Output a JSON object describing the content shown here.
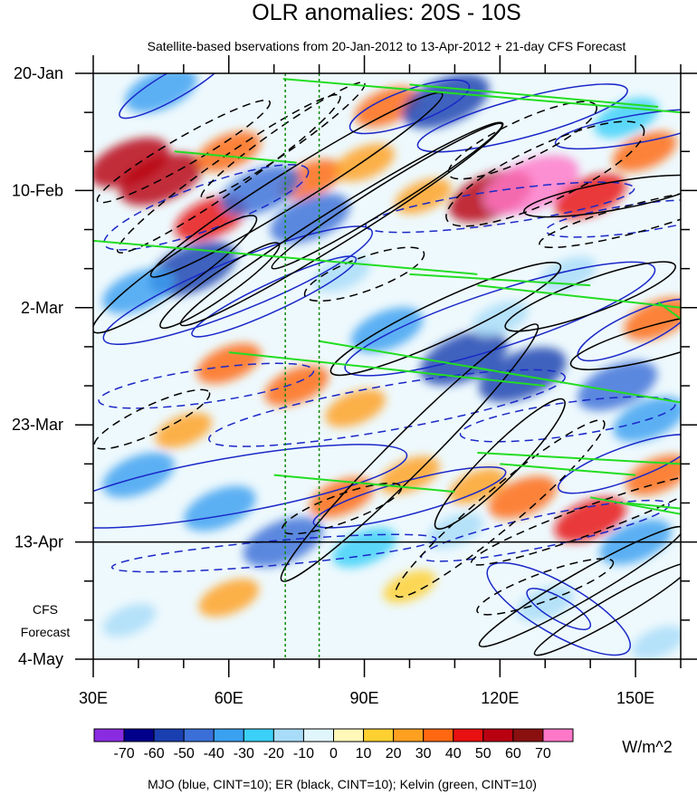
{
  "chart_data": {
    "type": "heatmap",
    "title": "OLR anomalies: 20S - 10S",
    "subtitle": "Satellite-based bservations from 20-Jan-2012 to 13-Apr-2012 + 21-day CFS Forecast",
    "xlabel": "",
    "ylabel": "",
    "xlim": [
      30,
      160
    ],
    "x_ticks": [
      {
        "value": 30,
        "label": "30E"
      },
      {
        "value": 60,
        "label": "60E"
      },
      {
        "value": 90,
        "label": "90E"
      },
      {
        "value": 120,
        "label": "120E"
      },
      {
        "value": 150,
        "label": "150E"
      }
    ],
    "time_range_days": [
      0,
      105
    ],
    "y_ticks": [
      {
        "day": 0,
        "label": "20-Jan"
      },
      {
        "day": 21,
        "label": "10-Feb"
      },
      {
        "day": 42,
        "label": "2-Mar"
      },
      {
        "day": 63,
        "label": "23-Mar"
      },
      {
        "day": 84,
        "label": "13-Apr"
      },
      {
        "day": 105,
        "label": "4-May"
      }
    ],
    "forecast_start_day": 84,
    "forecast_label_line1": "CFS",
    "forecast_label_line2": "Forecast",
    "reference_lines_lon": [
      72.5,
      80
    ],
    "colorbar": {
      "levels": [
        "-70",
        "-60",
        "-50",
        "-40",
        "-30",
        "-20",
        "-10",
        "0",
        "10",
        "20",
        "30",
        "40",
        "50",
        "60",
        "70"
      ],
      "colors": [
        "#8a2be2",
        "#00008b",
        "#1a3fb0",
        "#3a6fd8",
        "#3aa0f0",
        "#3ad0f8",
        "#a8dcf8",
        "#e0f6fc",
        "#fff8b8",
        "#ffd030",
        "#ffa020",
        "#ff6810",
        "#e81010",
        "#b80010",
        "#8a1010",
        "#ff78c8"
      ],
      "units": "W/m^2"
    },
    "contour_note": "MJO (blue, CINT=10); ER (black, CINT=10); Kelvin (green, CINT=10)",
    "series": [
      {
        "name": "MJO",
        "color": "#1a28c8"
      },
      {
        "name": "ER",
        "color": "#000000"
      },
      {
        "name": "Kelvin",
        "color": "#22dd22"
      }
    ],
    "anomaly_features": [
      {
        "lon": 38,
        "day": 16,
        "value": 50
      },
      {
        "lon": 45,
        "day": 19,
        "value": 55
      },
      {
        "lon": 60,
        "day": 14,
        "value": 30
      },
      {
        "lon": 56,
        "day": 26,
        "value": 40
      },
      {
        "lon": 78,
        "day": 19,
        "value": 30
      },
      {
        "lon": 95,
        "day": 6,
        "value": 30
      },
      {
        "lon": 90,
        "day": 16,
        "value": 25
      },
      {
        "lon": 103,
        "day": 22,
        "value": 20
      },
      {
        "lon": 118,
        "day": 22,
        "value": 55
      },
      {
        "lon": 127,
        "day": 20,
        "value": 70
      },
      {
        "lon": 140,
        "day": 22,
        "value": 40
      },
      {
        "lon": 152,
        "day": 14,
        "value": 30
      },
      {
        "lon": 155,
        "day": 44,
        "value": 35
      },
      {
        "lon": 60,
        "day": 52,
        "value": 30
      },
      {
        "lon": 75,
        "day": 56,
        "value": 30
      },
      {
        "lon": 88,
        "day": 60,
        "value": 25
      },
      {
        "lon": 50,
        "day": 64,
        "value": 20
      },
      {
        "lon": 85,
        "day": 76,
        "value": 30
      },
      {
        "lon": 100,
        "day": 72,
        "value": 25
      },
      {
        "lon": 115,
        "day": 74,
        "value": 20
      },
      {
        "lon": 125,
        "day": 76,
        "value": 35
      },
      {
        "lon": 140,
        "day": 80,
        "value": 40
      },
      {
        "lon": 155,
        "day": 72,
        "value": 30
      },
      {
        "lon": 60,
        "day": 94,
        "value": 25
      },
      {
        "lon": 100,
        "day": 92,
        "value": 15
      },
      {
        "lon": 45,
        "day": 3,
        "value": -40
      },
      {
        "lon": 108,
        "day": 5,
        "value": -60
      },
      {
        "lon": 148,
        "day": 8,
        "value": -30
      },
      {
        "lon": 67,
        "day": 21,
        "value": -50
      },
      {
        "lon": 78,
        "day": 26,
        "value": -50
      },
      {
        "lon": 52,
        "day": 35,
        "value": -60
      },
      {
        "lon": 40,
        "day": 39,
        "value": -40
      },
      {
        "lon": 85,
        "day": 36,
        "value": -20
      },
      {
        "lon": 135,
        "day": 36,
        "value": -20
      },
      {
        "lon": 95,
        "day": 46,
        "value": -40
      },
      {
        "lon": 112,
        "day": 51,
        "value": -60
      },
      {
        "lon": 125,
        "day": 54,
        "value": -60
      },
      {
        "lon": 146,
        "day": 56,
        "value": -50
      },
      {
        "lon": 153,
        "day": 62,
        "value": -40
      },
      {
        "lon": 120,
        "day": 44,
        "value": -20
      },
      {
        "lon": 40,
        "day": 72,
        "value": -40
      },
      {
        "lon": 58,
        "day": 78,
        "value": -40
      },
      {
        "lon": 72,
        "day": 84,
        "value": -50
      },
      {
        "lon": 90,
        "day": 85,
        "value": -30
      },
      {
        "lon": 110,
        "day": 82,
        "value": -20
      },
      {
        "lon": 150,
        "day": 84,
        "value": -40
      },
      {
        "lon": 130,
        "day": 95,
        "value": -20
      },
      {
        "lon": 155,
        "day": 102,
        "value": -15
      },
      {
        "lon": 38,
        "day": 98,
        "value": -15
      }
    ]
  }
}
